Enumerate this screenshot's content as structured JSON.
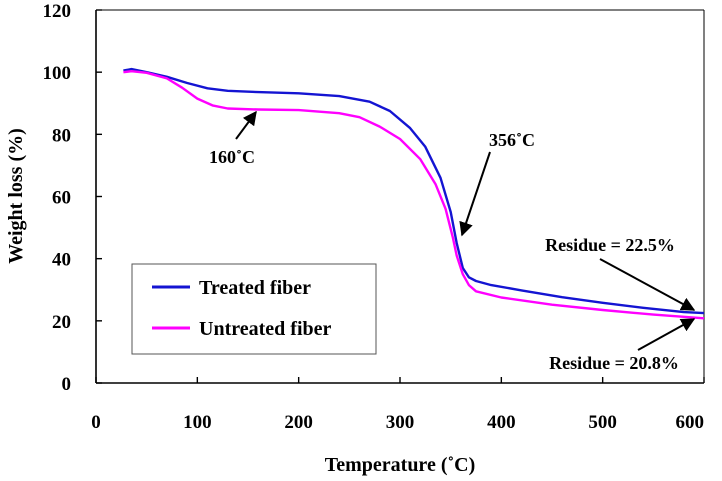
{
  "chart_data": {
    "type": "line",
    "xlabel": "Temperature (˚C)",
    "ylabel": "Weight loss (%)",
    "xlim": [
      0,
      600
    ],
    "ylim": [
      0,
      120
    ],
    "xticks": [
      "0",
      "100",
      "200",
      "300",
      "400",
      "500",
      "600"
    ],
    "yticks": [
      "0",
      "20",
      "40",
      "60",
      "80",
      "100",
      "120"
    ],
    "grid": false,
    "legend_position": "bottom-left",
    "series": [
      {
        "name": "Treated fiber",
        "color": "#1414d2",
        "x": [
          27,
          35,
          50,
          70,
          90,
          110,
          130,
          160,
          200,
          240,
          270,
          290,
          310,
          325,
          340,
          350,
          356,
          362,
          368,
          375,
          390,
          420,
          460,
          500,
          540,
          580,
          600
        ],
        "y": [
          100.5,
          101,
          100,
          98.5,
          96.5,
          94.8,
          94,
          93.6,
          93.2,
          92.3,
          90.5,
          87.5,
          82,
          76,
          66,
          55,
          45,
          37,
          34,
          32.8,
          31.5,
          29.8,
          27.6,
          25.8,
          24.2,
          22.8,
          22.5
        ]
      },
      {
        "name": "Untreated fiber",
        "color": "#ff00ff",
        "x": [
          27,
          35,
          50,
          70,
          85,
          100,
          115,
          130,
          160,
          200,
          240,
          260,
          280,
          300,
          320,
          335,
          345,
          352,
          356,
          362,
          368,
          375,
          400,
          450,
          500,
          550,
          600
        ],
        "y": [
          100,
          100.3,
          99.8,
          98,
          95,
          91.5,
          89.3,
          88.3,
          88,
          87.8,
          86.8,
          85.5,
          82.5,
          78.5,
          72,
          64,
          56,
          47,
          41,
          35,
          31.5,
          29.5,
          27.5,
          25.2,
          23.5,
          22,
          20.8
        ]
      }
    ],
    "annotations": [
      {
        "text": "160˚C"
      },
      {
        "text": "356˚C"
      },
      {
        "text": "Residue = 22.5%"
      },
      {
        "text": "Residue = 20.8%"
      }
    ]
  }
}
